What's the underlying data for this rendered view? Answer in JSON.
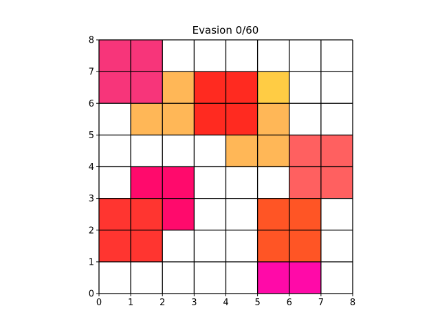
{
  "title": "Evasion 0/60",
  "grid": {
    "cols": 8,
    "rows": 8,
    "x_ticks": [
      "0",
      "1",
      "2",
      "3",
      "4",
      "5",
      "6",
      "7",
      "8"
    ],
    "y_ticks": [
      "0",
      "1",
      "2",
      "3",
      "4",
      "5",
      "6",
      "7",
      "8"
    ],
    "line_color": "#000000",
    "empty_color": "#ffffff"
  },
  "pieces": [
    {
      "name": "pink-block",
      "color": "#f7357a",
      "cells": [
        [
          0,
          6
        ],
        [
          1,
          6
        ],
        [
          0,
          7
        ],
        [
          1,
          7
        ]
      ]
    },
    {
      "name": "light-orange-block",
      "color": "#ffb757",
      "cells": [
        [
          2,
          6
        ],
        [
          1,
          5
        ],
        [
          2,
          5
        ]
      ]
    },
    {
      "name": "red-block",
      "color": "#ff2a20",
      "cells": [
        [
          3,
          6
        ],
        [
          4,
          6
        ],
        [
          3,
          5
        ],
        [
          4,
          5
        ]
      ]
    },
    {
      "name": "yellow-block",
      "color": "#ffcc44",
      "cells": [
        [
          5,
          6
        ]
      ]
    },
    {
      "name": "orange-block-center",
      "color": "#ffb757",
      "cells": [
        [
          5,
          5
        ],
        [
          4,
          4
        ],
        [
          5,
          4
        ]
      ]
    },
    {
      "name": "salmon-block",
      "color": "#ff6060",
      "cells": [
        [
          6,
          4
        ],
        [
          7,
          4
        ],
        [
          6,
          3
        ],
        [
          7,
          3
        ]
      ]
    },
    {
      "name": "magenta-block",
      "color": "#ff0a6c",
      "cells": [
        [
          1,
          3
        ],
        [
          2,
          3
        ],
        [
          2,
          2
        ]
      ]
    },
    {
      "name": "crimson-block",
      "color": "#ff3530",
      "cells": [
        [
          0,
          2
        ],
        [
          1,
          2
        ],
        [
          0,
          1
        ],
        [
          1,
          1
        ]
      ]
    },
    {
      "name": "vermilion-block",
      "color": "#ff5525",
      "cells": [
        [
          5,
          2
        ],
        [
          6,
          2
        ],
        [
          5,
          1
        ],
        [
          6,
          1
        ]
      ]
    },
    {
      "name": "fuchsia-block",
      "color": "#ff0aa8",
      "cells": [
        [
          5,
          0
        ],
        [
          6,
          0
        ]
      ]
    }
  ]
}
